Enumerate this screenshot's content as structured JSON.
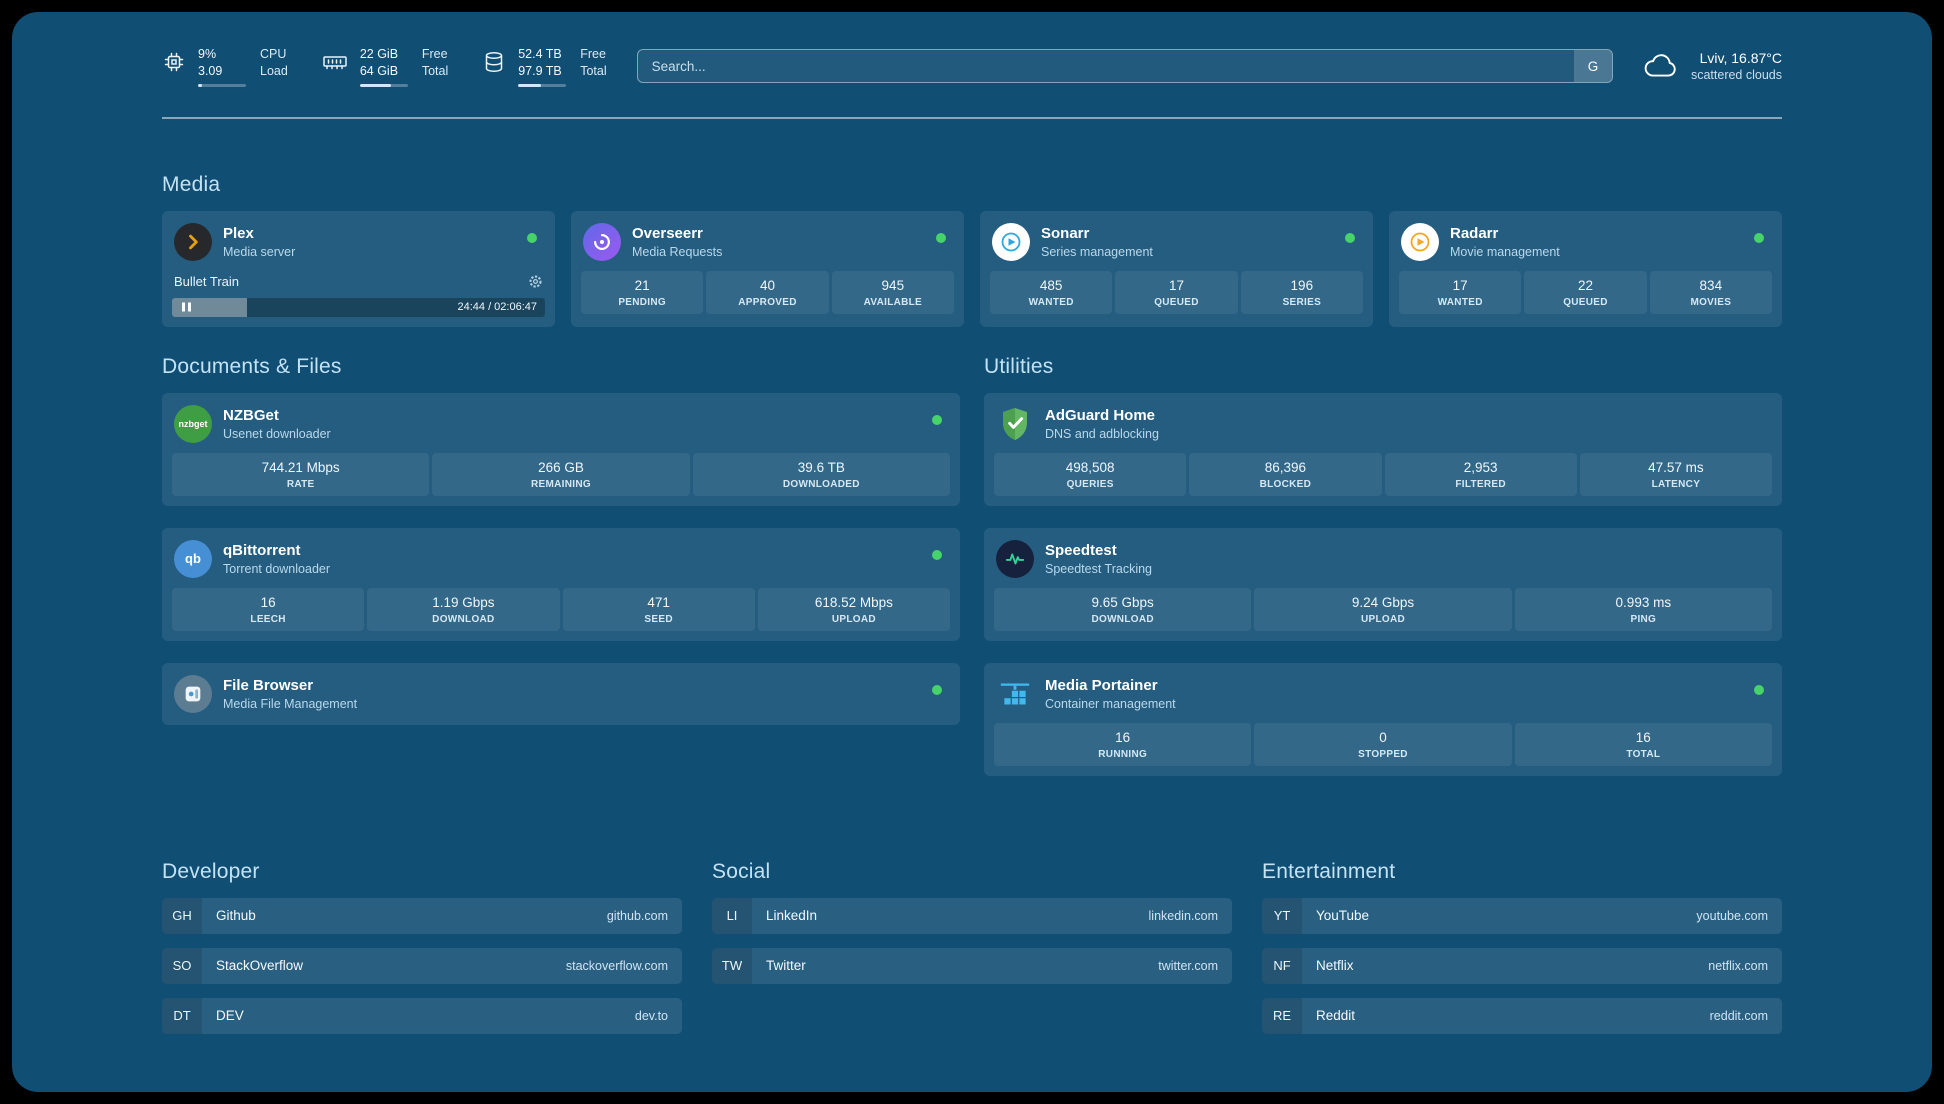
{
  "topbar": {
    "resources": [
      {
        "value_top": "9%",
        "value_bottom": "3.09",
        "label_top": "CPU",
        "label_bottom": "Load",
        "bar_percent": 9
      },
      {
        "value_top": "22 GiB",
        "value_bottom": "64 GiB",
        "label_top": "Free",
        "label_bottom": "Total",
        "bar_percent": 66
      },
      {
        "value_top": "52.4 TB",
        "value_bottom": "97.9 TB",
        "label_top": "Free",
        "label_bottom": "Total",
        "bar_percent": 47
      }
    ],
    "search": {
      "placeholder": "Search...",
      "provider_button": "G"
    },
    "weather": {
      "location": "Lviv, 16.87°C",
      "condition": "scattered clouds"
    }
  },
  "groups": {
    "media": {
      "title": "Media"
    },
    "documents": {
      "title": "Documents & Files"
    },
    "utilities": {
      "title": "Utilities"
    }
  },
  "services": {
    "plex": {
      "name": "Plex",
      "subtitle": "Media server",
      "now_playing": "Bullet Train",
      "time": "24:44 / 02:06:47",
      "progress_percent": 20
    },
    "overseerr": {
      "name": "Overseerr",
      "subtitle": "Media Requests",
      "stats": [
        {
          "value": "21",
          "label": "PENDING"
        },
        {
          "value": "40",
          "label": "APPROVED"
        },
        {
          "value": "945",
          "label": "AVAILABLE"
        }
      ]
    },
    "sonarr": {
      "name": "Sonarr",
      "subtitle": "Series management",
      "stats": [
        {
          "value": "485",
          "label": "WANTED"
        },
        {
          "value": "17",
          "label": "QUEUED"
        },
        {
          "value": "196",
          "label": "SERIES"
        }
      ]
    },
    "radarr": {
      "name": "Radarr",
      "subtitle": "Movie management",
      "stats": [
        {
          "value": "17",
          "label": "WANTED"
        },
        {
          "value": "22",
          "label": "QUEUED"
        },
        {
          "value": "834",
          "label": "MOVIES"
        }
      ]
    },
    "nzbget": {
      "name": "NZBGet",
      "subtitle": "Usenet downloader",
      "icon_text": "nzbget",
      "stats": [
        {
          "value": "744.21 Mbps",
          "label": "RATE"
        },
        {
          "value": "266 GB",
          "label": "REMAINING"
        },
        {
          "value": "39.6 TB",
          "label": "DOWNLOADED"
        }
      ]
    },
    "qbittorrent": {
      "name": "qBittorrent",
      "subtitle": "Torrent downloader",
      "icon_text": "qb",
      "stats": [
        {
          "value": "16",
          "label": "LEECH"
        },
        {
          "value": "1.19 Gbps",
          "label": "DOWNLOAD"
        },
        {
          "value": "471",
          "label": "SEED"
        },
        {
          "value": "618.52 Mbps",
          "label": "UPLOAD"
        }
      ]
    },
    "filebrowser": {
      "name": "File Browser",
      "subtitle": "Media File Management"
    },
    "adguard": {
      "name": "AdGuard Home",
      "subtitle": "DNS and adblocking",
      "stats": [
        {
          "value": "498,508",
          "label": "QUERIES"
        },
        {
          "value": "86,396",
          "label": "BLOCKED"
        },
        {
          "value": "2,953",
          "label": "FILTERED"
        },
        {
          "value": "47.57 ms",
          "label": "LATENCY"
        }
      ]
    },
    "speedtest": {
      "name": "Speedtest",
      "subtitle": "Speedtest Tracking",
      "stats": [
        {
          "value": "9.65 Gbps",
          "label": "DOWNLOAD"
        },
        {
          "value": "9.24 Gbps",
          "label": "UPLOAD"
        },
        {
          "value": "0.993 ms",
          "label": "PING"
        }
      ]
    },
    "portainer": {
      "name": "Media Portainer",
      "subtitle": "Container management",
      "stats": [
        {
          "value": "16",
          "label": "RUNNING"
        },
        {
          "value": "0",
          "label": "STOPPED"
        },
        {
          "value": "16",
          "label": "TOTAL"
        }
      ]
    }
  },
  "bookmarks": [
    {
      "title": "Developer",
      "items": [
        {
          "abbr": "GH",
          "name": "Github",
          "domain": "github.com"
        },
        {
          "abbr": "SO",
          "name": "StackOverflow",
          "domain": "stackoverflow.com"
        },
        {
          "abbr": "DT",
          "name": "DEV",
          "domain": "dev.to"
        }
      ]
    },
    {
      "title": "Social",
      "items": [
        {
          "abbr": "LI",
          "name": "LinkedIn",
          "domain": "linkedin.com"
        },
        {
          "abbr": "TW",
          "name": "Twitter",
          "domain": "twitter.com"
        }
      ]
    },
    {
      "title": "Entertainment",
      "items": [
        {
          "abbr": "YT",
          "name": "YouTube",
          "domain": "youtube.com"
        },
        {
          "abbr": "NF",
          "name": "Netflix",
          "domain": "netflix.com"
        },
        {
          "abbr": "RE",
          "name": "Reddit",
          "domain": "reddit.com"
        }
      ]
    }
  ]
}
